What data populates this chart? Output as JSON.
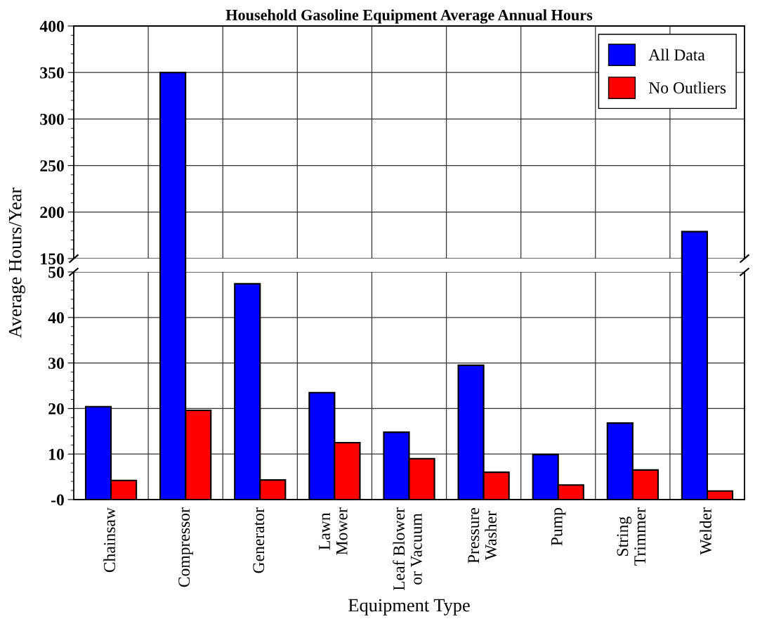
{
  "chart_data": [
    {
      "type": "bar",
      "title": "Household Gasoline Equipment Average Annual Hours",
      "ylabel": "Average Hours/Year",
      "categories": [
        null,
        null,
        null,
        null,
        null,
        null,
        null,
        null,
        null
      ],
      "series": [
        {
          "name": "All Data",
          "color": "#0000ff",
          "values": [
            null,
            350,
            null,
            null,
            null,
            null,
            null,
            null,
            179
          ]
        },
        {
          "name": "No Outliers",
          "color": "#ff0000",
          "values": [
            null,
            null,
            null,
            null,
            null,
            null,
            null,
            null,
            null
          ]
        }
      ],
      "ylim": [
        150,
        400
      ],
      "yticks": [
        150,
        200,
        250,
        300,
        350,
        400
      ],
      "grid": true,
      "legend": "top right",
      "tick_labels": "y"
    },
    {
      "type": "bar",
      "xlabel": "Equipment Type",
      "categories": [
        "Chainsaw",
        "Compressor",
        "Generator",
        "Lawn\nMower",
        "Leaf Blower\nor Vacuum",
        "Pressure\nWasher",
        "Pump",
        "String\nTrimmer",
        "Welder"
      ],
      "series": [
        {
          "color": "#0000ff",
          "values": [
            20.4,
            null,
            47.4,
            23.5,
            14.8,
            29.5,
            9.9,
            16.8,
            null
          ]
        },
        {
          "color": "#ff0000",
          "values": [
            4.2,
            19.6,
            4.3,
            12.5,
            9.0,
            6.0,
            3.2,
            6.5,
            1.9
          ]
        }
      ],
      "ylim": [
        0,
        50
      ],
      "yticks": [
        {
          "value": 0,
          "label": "-0"
        },
        10,
        20,
        30,
        40,
        50
      ],
      "grid": true
    }
  ]
}
